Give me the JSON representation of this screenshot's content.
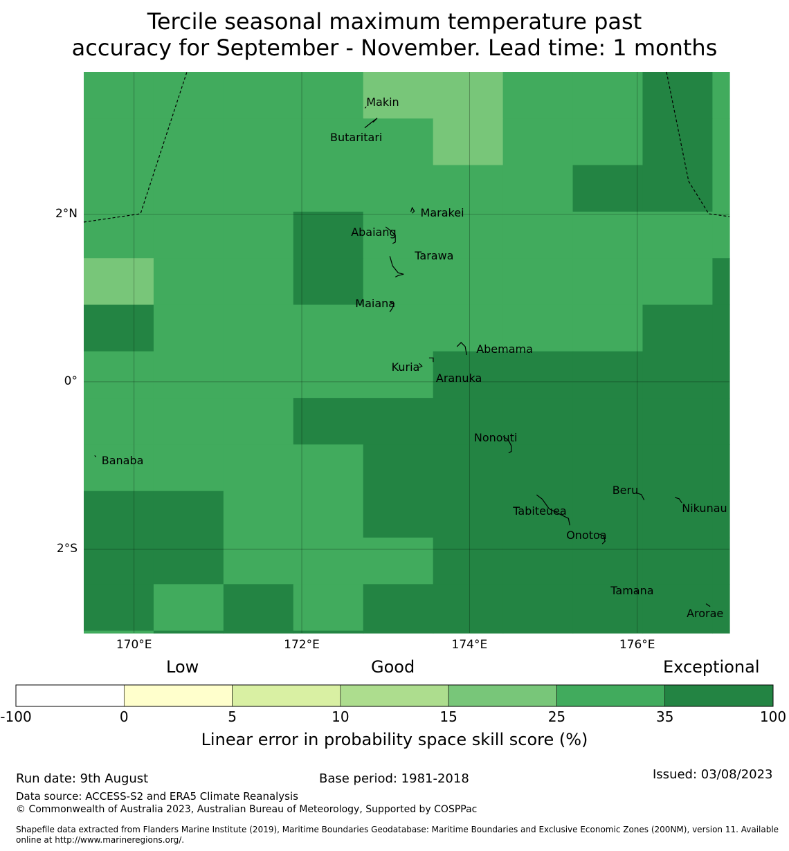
{
  "title": {
    "line1": "Tercile seasonal maximum temperature past",
    "line2": "accuracy for September - November. Lead time: 1 months"
  },
  "map": {
    "lon_range": [
      169.4,
      177.1
    ],
    "lat_range": [
      -3.0,
      3.7
    ],
    "cell_lon": 0.833,
    "cell_lat": 0.556,
    "grid_lon_start": 169.4,
    "grid_lat_top": 3.7,
    "lon_ticks": [
      "170°E",
      "172°E",
      "174°E",
      "176°E"
    ],
    "lat_ticks": [
      "2°N",
      "0°",
      "2°S"
    ],
    "cells": [
      [
        5,
        5,
        5,
        5,
        4,
        4,
        5,
        5,
        6,
        5
      ],
      [
        5,
        5,
        5,
        5,
        5,
        4,
        5,
        5,
        6,
        5
      ],
      [
        5,
        5,
        5,
        5,
        5,
        5,
        5,
        6,
        6,
        5
      ],
      [
        5,
        5,
        5,
        6,
        5,
        5,
        5,
        5,
        5,
        5
      ],
      [
        4,
        5,
        5,
        6,
        5,
        5,
        5,
        5,
        5,
        6
      ],
      [
        6,
        5,
        5,
        5,
        5,
        5,
        5,
        5,
        6,
        6
      ],
      [
        5,
        5,
        5,
        5,
        5,
        6,
        6,
        6,
        6,
        6
      ],
      [
        5,
        5,
        5,
        6,
        6,
        6,
        6,
        6,
        6,
        6
      ],
      [
        5,
        5,
        5,
        5,
        6,
        6,
        6,
        6,
        6,
        6
      ],
      [
        6,
        6,
        5,
        5,
        6,
        6,
        6,
        6,
        6,
        6
      ],
      [
        6,
        6,
        5,
        5,
        5,
        6,
        6,
        6,
        6,
        6
      ],
      [
        6,
        5,
        6,
        5,
        6,
        6,
        6,
        6,
        6,
        6
      ],
      [
        5,
        6,
        6,
        6,
        6,
        6,
        6,
        6,
        6,
        6
      ]
    ],
    "islands": [
      {
        "name": "Makin",
        "lon": 173.0,
        "lat": 3.35
      },
      {
        "name": "Butaritari",
        "lon": 172.85,
        "lat": 3.0
      },
      {
        "name": "Marakei",
        "lon": 173.3,
        "lat": 2.03
      },
      {
        "name": "Abaiang",
        "lon": 173.0,
        "lat": 1.85
      },
      {
        "name": "Tarawa",
        "lon": 173.05,
        "lat": 1.5
      },
      {
        "name": "Maiana",
        "lon": 173.05,
        "lat": 0.95
      },
      {
        "name": "Abemama",
        "lon": 173.85,
        "lat": 0.42
      },
      {
        "name": "Kuria",
        "lon": 173.4,
        "lat": 0.22
      },
      {
        "name": "Aranuka",
        "lon": 173.6,
        "lat": 0.17
      },
      {
        "name": "Nonouti",
        "lon": 174.4,
        "lat": -0.65
      },
      {
        "name": "Banaba",
        "lon": 169.53,
        "lat": -0.88
      },
      {
        "name": "Tabiteuea",
        "lon": 174.8,
        "lat": -1.35
      },
      {
        "name": "Beru",
        "lon": 176.0,
        "lat": -1.33
      },
      {
        "name": "Nikunau",
        "lon": 176.45,
        "lat": -1.38
      },
      {
        "name": "Onotoa",
        "lon": 175.55,
        "lat": -1.82
      },
      {
        "name": "Tamana",
        "lon": 175.98,
        "lat": -2.5
      },
      {
        "name": "Arorae",
        "lon": 176.82,
        "lat": -2.65
      }
    ]
  },
  "legend": {
    "category_low": "Low",
    "category_good": "Good",
    "category_exceptional": "Exceptional",
    "colors": [
      "#ffffff",
      "#ffffcc",
      "#d9f0a3",
      "#addd8e",
      "#78c679",
      "#41ab5d",
      "#238443"
    ],
    "ticks": [
      "-100",
      "0",
      "5",
      "10",
      "15",
      "25",
      "35",
      "100"
    ],
    "axis_title": "Linear error in probability space skill score (%)"
  },
  "footer": {
    "run_date": "Run date: 9th August",
    "base_period": "Base period: 1981-2018",
    "issued": "Issued: 03/08/2023",
    "data_source": "Data source: ACCESS-S2 and ERA5 Climate Reanalysis",
    "copyright": "© Commonwealth of Australia 2023, Australian Bureau of Meteorology, Supported by COSPPac",
    "shapefile": "Shapefile data extracted from Flanders Marine Institute (2019), Maritime Boundaries Geodatabase: Maritime Boundaries and Exclusive Economic Zones (200NM), version 11. Available online at http://www.marineregions.org/."
  }
}
